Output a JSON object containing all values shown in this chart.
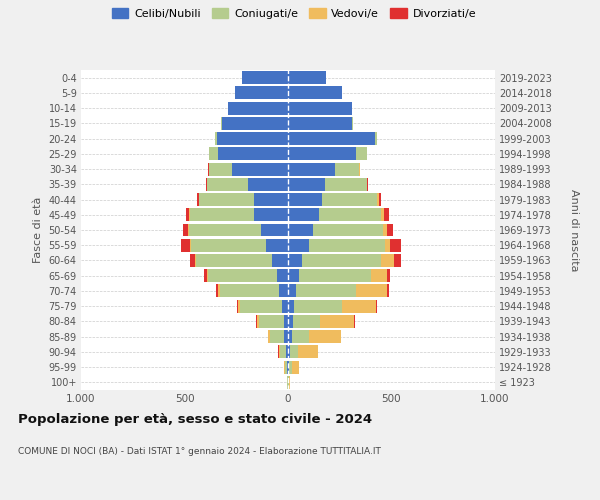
{
  "age_groups": [
    "100+",
    "95-99",
    "90-94",
    "85-89",
    "80-84",
    "75-79",
    "70-74",
    "65-69",
    "60-64",
    "55-59",
    "50-54",
    "45-49",
    "40-44",
    "35-39",
    "30-34",
    "25-29",
    "20-24",
    "15-19",
    "10-14",
    "5-9",
    "0-4"
  ],
  "birth_years": [
    "≤ 1923",
    "1924-1928",
    "1929-1933",
    "1934-1938",
    "1939-1943",
    "1944-1948",
    "1949-1953",
    "1954-1958",
    "1959-1963",
    "1964-1968",
    "1969-1973",
    "1974-1978",
    "1979-1983",
    "1984-1988",
    "1989-1993",
    "1994-1998",
    "1999-2003",
    "2004-2008",
    "2009-2013",
    "2014-2018",
    "2019-2023"
  ],
  "male": {
    "celibi": [
      2,
      5,
      10,
      20,
      20,
      30,
      45,
      55,
      75,
      105,
      130,
      165,
      165,
      195,
      270,
      340,
      345,
      320,
      290,
      255,
      220
    ],
    "coniugati": [
      2,
      10,
      30,
      65,
      120,
      200,
      285,
      330,
      370,
      365,
      350,
      310,
      265,
      195,
      110,
      40,
      8,
      2,
      0,
      0,
      0
    ],
    "vedovi": [
      0,
      2,
      5,
      10,
      10,
      10,
      10,
      8,
      5,
      5,
      5,
      3,
      2,
      2,
      2,
      2,
      2,
      0,
      0,
      0,
      0
    ],
    "divorziati": [
      0,
      0,
      2,
      2,
      5,
      5,
      10,
      12,
      25,
      40,
      20,
      15,
      8,
      5,
      3,
      2,
      0,
      0,
      0,
      0,
      0
    ]
  },
  "female": {
    "nubili": [
      2,
      5,
      10,
      20,
      25,
      30,
      40,
      55,
      70,
      100,
      120,
      150,
      165,
      180,
      225,
      330,
      420,
      310,
      310,
      260,
      185
    ],
    "coniugate": [
      2,
      15,
      40,
      80,
      130,
      230,
      290,
      345,
      380,
      370,
      340,
      300,
      265,
      200,
      120,
      50,
      8,
      2,
      0,
      0,
      0
    ],
    "vedove": [
      5,
      35,
      95,
      155,
      165,
      165,
      150,
      80,
      60,
      25,
      20,
      15,
      8,
      3,
      2,
      2,
      0,
      0,
      0,
      0,
      0
    ],
    "divorziate": [
      0,
      0,
      2,
      3,
      5,
      5,
      10,
      15,
      35,
      50,
      25,
      25,
      10,
      5,
      2,
      2,
      0,
      0,
      0,
      0,
      0
    ]
  },
  "colors": {
    "celibi": "#4472c4",
    "coniugati": "#b5cc8e",
    "vedovi": "#f0bc5e",
    "divorziati": "#e03030"
  },
  "legend_labels": [
    "Celibi/Nubili",
    "Coniugati/e",
    "Vedovi/e",
    "Divorziati/e"
  ],
  "title_main": "Popolazione per età, sesso e stato civile - 2024",
  "title_sub": "COMUNE DI NOCI (BA) - Dati ISTAT 1° gennaio 2024 - Elaborazione TUTTITALIA.IT",
  "ylabel_left": "Fasce di età",
  "ylabel_right": "Anni di nascita",
  "xlim": 1000,
  "bg_color": "#f0f0f0",
  "plot_bg": "#ffffff"
}
